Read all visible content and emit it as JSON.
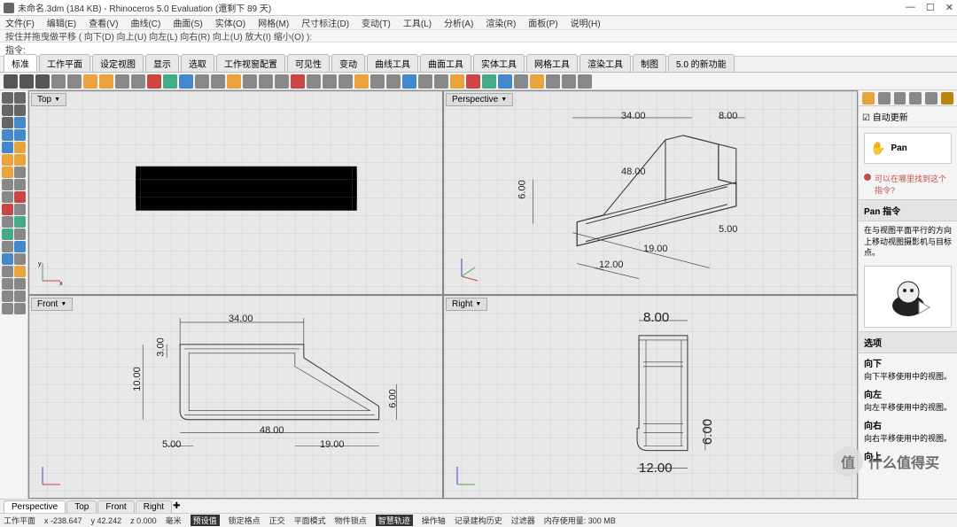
{
  "title": "未命名.3dm (184 KB) - Rhinoceros 5.0 Evaluation (還剩下 89 天)",
  "menus": [
    "文件(F)",
    "编辑(E)",
    "查看(V)",
    "曲线(C)",
    "曲面(S)",
    "实体(O)",
    "网格(M)",
    "尺寸标注(D)",
    "变动(T)",
    "工具(L)",
    "分析(A)",
    "渲染(R)",
    "面板(P)",
    "说明(H)"
  ],
  "hint": "按住并拖曳做平移 ( 向下(D)  向上(U)  向左(L)  向右(R)  向上(U)  放大(I)  缩小(O) ):",
  "cmdlabel": "指令:",
  "tabs": [
    "标准",
    "工作平面",
    "设定视图",
    "显示",
    "选取",
    "工作视窗配置",
    "可见性",
    "变动",
    "曲线工具",
    "曲面工具",
    "实体工具",
    "网格工具",
    "渲染工具",
    "制图",
    "5.0 的新功能"
  ],
  "viewports": {
    "tl": "Top",
    "tr": "Perspective",
    "bl": "Front",
    "br": "Right"
  },
  "dims": {
    "tr": {
      "a": "34.00",
      "b": "8.00",
      "c": "48.00",
      "d": "6.00",
      "e": "12.00",
      "f": "19.00",
      "g": "5.00"
    },
    "bl": {
      "a": "34.00",
      "b": "3.00",
      "c": "10.00",
      "d": "48.00",
      "e": "19.00",
      "f": "5.00",
      "g": "6.00"
    },
    "br": {
      "a": "8.00",
      "b": "6.00",
      "c": "12.00"
    }
  },
  "rightpanel": {
    "autoupdate": "自动更新",
    "pan": "Pan",
    "hint": "可以在哪里找到这个指令?",
    "pancmd": "Pan 指令",
    "pandesc": "在与视图平面平行的方向上移动视图摄影机与目标点。",
    "options_header": "选项",
    "opts": [
      {
        "t": "向下",
        "d": "向下平移使用中的视图。"
      },
      {
        "t": "向左",
        "d": "向左平移使用中的视图。"
      },
      {
        "t": "向右",
        "d": "向右平移使用中的视图。"
      },
      {
        "t": "向上",
        "d": ""
      }
    ]
  },
  "vtabs": [
    "Perspective",
    "Top",
    "Front",
    "Right"
  ],
  "status": {
    "cplane": "工作平面",
    "x": "x -238.647",
    "y": "y 42.242",
    "z": "z 0.000",
    "unit": "毫米",
    "items": [
      "预设值",
      "锁定格点",
      "正交",
      "平面模式",
      "物件锁点",
      "智慧轨迹",
      "操作轴",
      "记录建构历史",
      "过滤器",
      "内存使用量: 300 MB"
    ]
  },
  "watermark": "什么值得买",
  "winbtns": {
    "min": "—",
    "max": "☐",
    "close": "✕"
  },
  "colors": {
    "toolicons": [
      "#555",
      "#555",
      "#555",
      "#888",
      "#888",
      "#e8a33c",
      "#e8a33c",
      "#888",
      "#888",
      "#c44",
      "#4a8",
      "#48c",
      "#888",
      "#888",
      "#e8a33c",
      "#888",
      "#888",
      "#888",
      "#c44",
      "#888",
      "#888",
      "#888",
      "#e8a33c",
      "#888",
      "#888",
      "#48c",
      "#888",
      "#888",
      "#e8a33c",
      "#c44",
      "#4a8",
      "#48c",
      "#888",
      "#e8a33c",
      "#888",
      "#888",
      "#888"
    ],
    "leftcols": [
      "#666",
      "#666",
      "#666",
      "#666",
      "#666",
      "#48c",
      "#48c",
      "#48c",
      "#48c",
      "#e8a33c",
      "#e8a33c",
      "#e8a33c",
      "#e8a33c",
      "#888",
      "#888",
      "#888",
      "#888",
      "#c44",
      "#c44",
      "#888",
      "#888",
      "#4a8",
      "#4a8",
      "#888",
      "#888",
      "#48c",
      "#48c",
      "#888",
      "#888",
      "#e8a33c",
      "#888",
      "#888",
      "#888",
      "#888",
      "#888",
      "#888"
    ],
    "ptabs": [
      "#e8a33c",
      "#888",
      "#888",
      "#888",
      "#888",
      "#b8860b"
    ]
  }
}
